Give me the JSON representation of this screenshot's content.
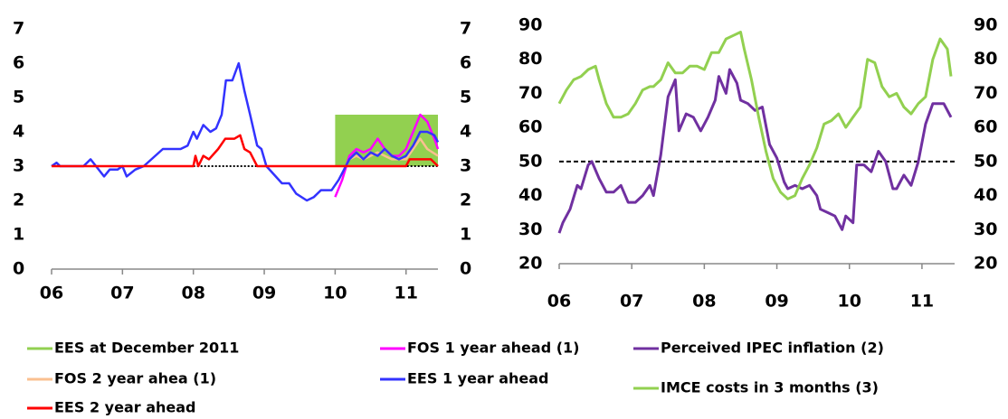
{
  "chart_data": [
    {
      "type": "line",
      "xlim": [
        6,
        11.45
      ],
      "xticks": [
        {
          "value": 6,
          "label": "06"
        },
        {
          "value": 7,
          "label": "07"
        },
        {
          "value": 8,
          "label": "08"
        },
        {
          "value": 9,
          "label": "09"
        },
        {
          "value": 10,
          "label": "10"
        },
        {
          "value": 11,
          "label": "11"
        }
      ],
      "ylim": [
        0,
        7
      ],
      "yticks": [
        0,
        1,
        2,
        3,
        4,
        5,
        6,
        7
      ],
      "y2lim": [
        0,
        7
      ],
      "y2ticks": [
        0,
        1,
        2,
        3,
        4,
        5,
        6,
        7
      ],
      "reference_line": {
        "y": 3,
        "x": [
          8,
          11.45
        ],
        "color": "#000000"
      },
      "series": [
        {
          "name": "EES at December 2011",
          "color": "#92d050",
          "style": "band",
          "x": [
            10,
            11.45
          ],
          "values": [
            3,
            4.5
          ]
        },
        {
          "name": "FOS 1 year ahead (1)",
          "color": "#ff00ff",
          "x": [
            10.0,
            10.1,
            10.2,
            10.3,
            10.4,
            10.5,
            10.6,
            10.7,
            10.8,
            10.9,
            11.0,
            11.1,
            11.2,
            11.3,
            11.4,
            11.45
          ],
          "values": [
            2.1,
            2.6,
            3.3,
            3.5,
            3.4,
            3.5,
            3.8,
            3.5,
            3.3,
            3.3,
            3.5,
            4.0,
            4.5,
            4.3,
            3.8,
            3.5
          ]
        },
        {
          "name": "FOS 2 year ahea (1)",
          "color": "#fac090",
          "x": [
            10.2,
            10.3,
            10.4,
            10.5,
            10.6,
            10.7,
            10.8,
            10.9,
            11.0,
            11.1,
            11.2,
            11.3,
            11.45
          ],
          "values": [
            3.2,
            3.3,
            3.2,
            3.3,
            3.4,
            3.3,
            3.2,
            3.2,
            3.2,
            3.5,
            3.8,
            3.5,
            3.3
          ]
        },
        {
          "name": "EES 1 year ahead",
          "color": "#3333ff",
          "x": [
            6.0,
            6.07,
            6.12,
            6.45,
            6.55,
            6.74,
            6.82,
            6.93,
            7.0,
            7.06,
            7.18,
            7.3,
            7.57,
            7.82,
            7.92,
            8.0,
            8.05,
            8.14,
            8.24,
            8.32,
            8.4,
            8.46,
            8.55,
            8.64,
            8.72,
            8.8,
            8.9,
            8.96,
            9.03,
            9.25,
            9.35,
            9.45,
            9.6,
            9.7,
            9.8,
            9.95,
            10.05,
            10.2,
            10.3,
            10.4,
            10.5,
            10.6,
            10.7,
            10.8,
            10.9,
            11.0,
            11.1,
            11.2,
            11.3,
            11.4,
            11.45
          ],
          "values": [
            3.0,
            3.1,
            3.0,
            3.0,
            3.2,
            2.7,
            2.9,
            2.9,
            3.0,
            2.7,
            2.9,
            3.0,
            3.5,
            3.5,
            3.6,
            4.0,
            3.8,
            4.2,
            4.0,
            4.1,
            4.5,
            5.5,
            5.5,
            6.0,
            5.2,
            4.5,
            3.6,
            3.5,
            3.0,
            2.5,
            2.5,
            2.2,
            2.0,
            2.1,
            2.3,
            2.3,
            2.6,
            3.2,
            3.4,
            3.2,
            3.4,
            3.3,
            3.5,
            3.3,
            3.2,
            3.3,
            3.6,
            4.0,
            4.0,
            3.9,
            3.7
          ]
        },
        {
          "name": "EES 2 year ahead",
          "color": "#ff0000",
          "x": [
            6.0,
            8.0,
            8.03,
            8.07,
            8.14,
            8.22,
            8.35,
            8.45,
            8.58,
            8.66,
            8.72,
            8.8,
            8.9,
            11.0,
            11.05,
            11.35,
            11.45
          ],
          "values": [
            3.0,
            3.0,
            3.3,
            3.0,
            3.3,
            3.2,
            3.5,
            3.8,
            3.8,
            3.9,
            3.5,
            3.4,
            3.0,
            3.0,
            3.2,
            3.2,
            3.0
          ]
        }
      ]
    },
    {
      "type": "line",
      "xlim": [
        6,
        11.45
      ],
      "xticks": [
        {
          "value": 6,
          "label": "06"
        },
        {
          "value": 7,
          "label": "07"
        },
        {
          "value": 8,
          "label": "08"
        },
        {
          "value": 9,
          "label": "09"
        },
        {
          "value": 10,
          "label": "10"
        },
        {
          "value": 11,
          "label": "11"
        }
      ],
      "ylim": [
        20,
        90
      ],
      "yticks": [
        20,
        30,
        40,
        50,
        60,
        70,
        80,
        90
      ],
      "y2lim": [
        20,
        90
      ],
      "y2ticks": [
        20,
        30,
        40,
        50,
        60,
        70,
        80,
        90
      ],
      "reference_line": {
        "y": 50,
        "x": [
          6,
          11.45
        ],
        "color": "#000000"
      },
      "series": [
        {
          "name": "Perceived IPEC inflation (2)",
          "color": "#7030a0",
          "x": [
            6.0,
            6.05,
            6.15,
            6.25,
            6.3,
            6.4,
            6.45,
            6.55,
            6.65,
            6.75,
            6.85,
            6.95,
            7.05,
            7.15,
            7.25,
            7.3,
            7.4,
            7.5,
            7.6,
            7.65,
            7.75,
            7.85,
            7.95,
            8.05,
            8.15,
            8.2,
            8.3,
            8.35,
            8.45,
            8.5,
            8.6,
            8.7,
            8.8,
            8.9,
            9.0,
            9.1,
            9.15,
            9.25,
            9.35,
            9.45,
            9.55,
            9.6,
            9.7,
            9.8,
            9.9,
            9.95,
            10.05,
            10.1,
            10.2,
            10.3,
            10.4,
            10.5,
            10.6,
            10.65,
            10.75,
            10.85,
            10.95,
            11.05,
            11.15,
            11.25,
            11.3,
            11.4
          ],
          "values": [
            29,
            32,
            36,
            43,
            42,
            49,
            50,
            45,
            41,
            41,
            43,
            38,
            38,
            40,
            43,
            40,
            52,
            69,
            74,
            59,
            64,
            63,
            59,
            63,
            68,
            75,
            70,
            77,
            73,
            68,
            67,
            65,
            66,
            55,
            51,
            44,
            42,
            43,
            42,
            43,
            40,
            36,
            35,
            34,
            30,
            34,
            32,
            49,
            49,
            47,
            53,
            50,
            42,
            42,
            46,
            43,
            50,
            61,
            67,
            67,
            67,
            63
          ]
        },
        {
          "name": "IMCE costs in 3 months (3)",
          "color": "#92d050",
          "x": [
            6.0,
            6.1,
            6.2,
            6.3,
            6.4,
            6.5,
            6.55,
            6.65,
            6.75,
            6.85,
            6.95,
            7.05,
            7.15,
            7.25,
            7.3,
            7.4,
            7.5,
            7.6,
            7.7,
            7.8,
            7.9,
            8.0,
            8.1,
            8.2,
            8.3,
            8.4,
            8.5,
            8.55,
            8.65,
            8.75,
            8.85,
            8.95,
            9.05,
            9.15,
            9.25,
            9.35,
            9.45,
            9.55,
            9.65,
            9.75,
            9.85,
            9.95,
            10.05,
            10.15,
            10.25,
            10.35,
            10.45,
            10.55,
            10.65,
            10.75,
            10.85,
            10.95,
            11.05,
            11.15,
            11.25,
            11.35,
            11.4
          ],
          "values": [
            67,
            71,
            74,
            75,
            77,
            78,
            74,
            67,
            63,
            63,
            64,
            67,
            71,
            72,
            72,
            74,
            79,
            76,
            76,
            78,
            78,
            77,
            82,
            82,
            86,
            87,
            88,
            83,
            74,
            63,
            53,
            45,
            41,
            39,
            40,
            45,
            49,
            54,
            61,
            62,
            64,
            60,
            63,
            66,
            80,
            79,
            72,
            69,
            70,
            66,
            64,
            67,
            69,
            80,
            86,
            83,
            75
          ]
        }
      ]
    }
  ]
}
